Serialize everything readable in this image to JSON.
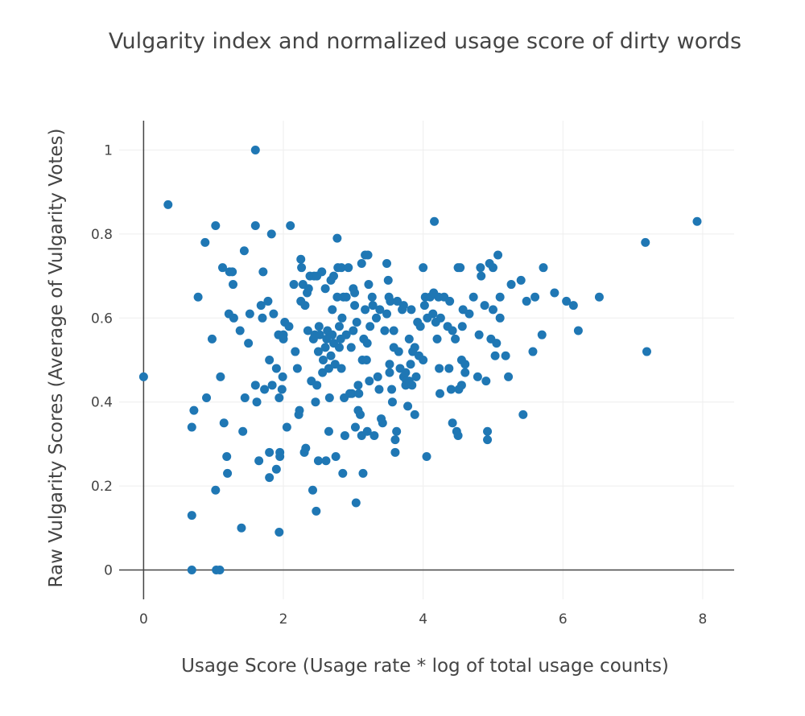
{
  "chart_data": {
    "type": "scatter",
    "title": "Vulgarity index and normalized usage score of dirty words",
    "xlabel": "Usage Score (Usage rate * log of total usage counts)",
    "ylabel": "Raw Vulgarity Scores (Average of Vulgarity Votes)",
    "xlim": [
      -0.35,
      8.45
    ],
    "ylim": [
      -0.07,
      1.07
    ],
    "xticks": [
      0,
      2,
      4,
      6,
      8
    ],
    "yticks": [
      0,
      0.2,
      0.4,
      0.6,
      0.8,
      1
    ],
    "x_tick_labels": [
      "0",
      "2",
      "4",
      "6",
      "8"
    ],
    "y_tick_labels": [
      "0",
      "0.2",
      "0.4",
      "0.6",
      "0.8",
      "1"
    ],
    "grid": true,
    "marker_color": "#1f77b4",
    "series": [
      {
        "points": [
          [
            0.0,
            0.46
          ],
          [
            0.35,
            0.87
          ],
          [
            0.69,
            0.0
          ],
          [
            0.69,
            0.13
          ],
          [
            0.69,
            0.34
          ],
          [
            0.72,
            0.38
          ],
          [
            0.78,
            0.65
          ],
          [
            0.88,
            0.78
          ],
          [
            0.9,
            0.41
          ],
          [
            0.98,
            0.55
          ],
          [
            1.03,
            0.82
          ],
          [
            1.03,
            0.19
          ],
          [
            1.04,
            0.0
          ],
          [
            1.09,
            0.0
          ],
          [
            1.1,
            0.46
          ],
          [
            1.13,
            0.72
          ],
          [
            1.15,
            0.35
          ],
          [
            1.19,
            0.27
          ],
          [
            1.2,
            0.23
          ],
          [
            1.22,
            0.61
          ],
          [
            1.23,
            0.71
          ],
          [
            1.27,
            0.71
          ],
          [
            1.28,
            0.68
          ],
          [
            1.29,
            0.6
          ],
          [
            1.38,
            0.57
          ],
          [
            1.4,
            0.1
          ],
          [
            1.42,
            0.33
          ],
          [
            1.44,
            0.76
          ],
          [
            1.45,
            0.41
          ],
          [
            1.5,
            0.54
          ],
          [
            1.52,
            0.61
          ],
          [
            1.6,
            1.0
          ],
          [
            1.6,
            0.82
          ],
          [
            1.6,
            0.44
          ],
          [
            1.62,
            0.4
          ],
          [
            1.65,
            0.26
          ],
          [
            1.68,
            0.63
          ],
          [
            1.7,
            0.6
          ],
          [
            1.71,
            0.71
          ],
          [
            1.73,
            0.43
          ],
          [
            1.78,
            0.64
          ],
          [
            1.8,
            0.28
          ],
          [
            1.8,
            0.22
          ],
          [
            1.8,
            0.5
          ],
          [
            1.83,
            0.8
          ],
          [
            1.84,
            0.44
          ],
          [
            1.86,
            0.61
          ],
          [
            1.9,
            0.24
          ],
          [
            1.9,
            0.48
          ],
          [
            1.93,
            0.56
          ],
          [
            1.94,
            0.41
          ],
          [
            1.94,
            0.09
          ],
          [
            1.95,
            0.28
          ],
          [
            1.95,
            0.27
          ],
          [
            1.98,
            0.43
          ],
          [
            1.99,
            0.46
          ],
          [
            2.0,
            0.55
          ],
          [
            2.0,
            0.56
          ],
          [
            2.02,
            0.59
          ],
          [
            2.05,
            0.34
          ],
          [
            2.08,
            0.58
          ],
          [
            2.1,
            0.82
          ],
          [
            2.15,
            0.68
          ],
          [
            2.17,
            0.52
          ],
          [
            2.2,
            0.48
          ],
          [
            2.22,
            0.37
          ],
          [
            2.23,
            0.38
          ],
          [
            2.25,
            0.64
          ],
          [
            2.25,
            0.74
          ],
          [
            2.26,
            0.72
          ],
          [
            2.28,
            0.68
          ],
          [
            2.3,
            0.28
          ],
          [
            2.31,
            0.63
          ],
          [
            2.32,
            0.29
          ],
          [
            2.34,
            0.66
          ],
          [
            2.35,
            0.57
          ],
          [
            2.36,
            0.67
          ],
          [
            2.38,
            0.7
          ],
          [
            2.4,
            0.45
          ],
          [
            2.42,
            0.19
          ],
          [
            2.43,
            0.55
          ],
          [
            2.44,
            0.7
          ],
          [
            2.45,
            0.56
          ],
          [
            2.46,
            0.4
          ],
          [
            2.47,
            0.14
          ],
          [
            2.48,
            0.7
          ],
          [
            2.48,
            0.44
          ],
          [
            2.5,
            0.26
          ],
          [
            2.5,
            0.52
          ],
          [
            2.51,
            0.58
          ],
          [
            2.52,
            0.56
          ],
          [
            2.55,
            0.71
          ],
          [
            2.56,
            0.47
          ],
          [
            2.57,
            0.5
          ],
          [
            2.6,
            0.53
          ],
          [
            2.6,
            0.67
          ],
          [
            2.61,
            0.26
          ],
          [
            2.62,
            0.55
          ],
          [
            2.63,
            0.57
          ],
          [
            2.65,
            0.48
          ],
          [
            2.65,
            0.33
          ],
          [
            2.66,
            0.41
          ],
          [
            2.68,
            0.69
          ],
          [
            2.68,
            0.51
          ],
          [
            2.7,
            0.56
          ],
          [
            2.7,
            0.62
          ],
          [
            2.72,
            0.7
          ],
          [
            2.72,
            0.54
          ],
          [
            2.74,
            0.49
          ],
          [
            2.75,
            0.27
          ],
          [
            2.77,
            0.79
          ],
          [
            2.77,
            0.65
          ],
          [
            2.78,
            0.72
          ],
          [
            2.8,
            0.58
          ],
          [
            2.8,
            0.53
          ],
          [
            2.82,
            0.55
          ],
          [
            2.83,
            0.72
          ],
          [
            2.83,
            0.48
          ],
          [
            2.84,
            0.6
          ],
          [
            2.85,
            0.23
          ],
          [
            2.86,
            0.65
          ],
          [
            2.87,
            0.41
          ],
          [
            2.88,
            0.32
          ],
          [
            2.9,
            0.65
          ],
          [
            2.9,
            0.56
          ],
          [
            2.93,
            0.72
          ],
          [
            2.95,
            0.42
          ],
          [
            2.97,
            0.53
          ],
          [
            2.98,
            0.42
          ],
          [
            3.0,
            0.57
          ],
          [
            3.0,
            0.67
          ],
          [
            3.02,
            0.66
          ],
          [
            3.02,
            0.63
          ],
          [
            3.03,
            0.34
          ],
          [
            3.04,
            0.16
          ],
          [
            3.05,
            0.59
          ],
          [
            3.07,
            0.38
          ],
          [
            3.07,
            0.44
          ],
          [
            3.08,
            0.42
          ],
          [
            3.1,
            0.37
          ],
          [
            3.12,
            0.73
          ],
          [
            3.12,
            0.32
          ],
          [
            3.13,
            0.5
          ],
          [
            3.14,
            0.23
          ],
          [
            3.15,
            0.55
          ],
          [
            3.17,
            0.62
          ],
          [
            3.17,
            0.75
          ],
          [
            3.19,
            0.5
          ],
          [
            3.2,
            0.33
          ],
          [
            3.2,
            0.54
          ],
          [
            3.21,
            0.75
          ],
          [
            3.22,
            0.68
          ],
          [
            3.23,
            0.45
          ],
          [
            3.24,
            0.58
          ],
          [
            3.27,
            0.65
          ],
          [
            3.28,
            0.63
          ],
          [
            3.3,
            0.32
          ],
          [
            3.33,
            0.6
          ],
          [
            3.35,
            0.46
          ],
          [
            3.37,
            0.43
          ],
          [
            3.38,
            0.62
          ],
          [
            3.4,
            0.36
          ],
          [
            3.42,
            0.35
          ],
          [
            3.45,
            0.57
          ],
          [
            3.48,
            0.73
          ],
          [
            3.48,
            0.61
          ],
          [
            3.5,
            0.69
          ],
          [
            3.51,
            0.65
          ],
          [
            3.52,
            0.47
          ],
          [
            3.52,
            0.49
          ],
          [
            3.53,
            0.64
          ],
          [
            3.55,
            0.43
          ],
          [
            3.56,
            0.4
          ],
          [
            3.58,
            0.53
          ],
          [
            3.58,
            0.57
          ],
          [
            3.6,
            0.31
          ],
          [
            3.6,
            0.28
          ],
          [
            3.62,
            0.33
          ],
          [
            3.63,
            0.64
          ],
          [
            3.65,
            0.52
          ],
          [
            3.67,
            0.48
          ],
          [
            3.7,
            0.62
          ],
          [
            3.72,
            0.46
          ],
          [
            3.72,
            0.63
          ],
          [
            3.75,
            0.44
          ],
          [
            3.75,
            0.47
          ],
          [
            3.76,
            0.45
          ],
          [
            3.78,
            0.39
          ],
          [
            3.8,
            0.55
          ],
          [
            3.8,
            0.45
          ],
          [
            3.82,
            0.49
          ],
          [
            3.83,
            0.62
          ],
          [
            3.84,
            0.44
          ],
          [
            3.85,
            0.52
          ],
          [
            3.88,
            0.37
          ],
          [
            3.88,
            0.53
          ],
          [
            3.9,
            0.46
          ],
          [
            3.92,
            0.59
          ],
          [
            3.94,
            0.51
          ],
          [
            3.96,
            0.58
          ],
          [
            4.0,
            0.72
          ],
          [
            4.0,
            0.5
          ],
          [
            4.02,
            0.63
          ],
          [
            4.03,
            0.65
          ],
          [
            4.05,
            0.27
          ],
          [
            4.06,
            0.6
          ],
          [
            4.1,
            0.65
          ],
          [
            4.14,
            0.61
          ],
          [
            4.15,
            0.66
          ],
          [
            4.16,
            0.83
          ],
          [
            4.18,
            0.59
          ],
          [
            4.2,
            0.55
          ],
          [
            4.22,
            0.65
          ],
          [
            4.23,
            0.48
          ],
          [
            4.24,
            0.42
          ],
          [
            4.25,
            0.6
          ],
          [
            4.3,
            0.65
          ],
          [
            4.35,
            0.58
          ],
          [
            4.37,
            0.48
          ],
          [
            4.38,
            0.64
          ],
          [
            4.4,
            0.43
          ],
          [
            4.42,
            0.57
          ],
          [
            4.42,
            0.35
          ],
          [
            4.46,
            0.55
          ],
          [
            4.48,
            0.33
          ],
          [
            4.5,
            0.32
          ],
          [
            4.5,
            0.72
          ],
          [
            4.51,
            0.43
          ],
          [
            4.53,
            0.72
          ],
          [
            4.55,
            0.5
          ],
          [
            4.55,
            0.44
          ],
          [
            4.56,
            0.58
          ],
          [
            4.57,
            0.62
          ],
          [
            4.6,
            0.49
          ],
          [
            4.6,
            0.47
          ],
          [
            4.66,
            0.61
          ],
          [
            4.72,
            0.65
          ],
          [
            4.78,
            0.46
          ],
          [
            4.8,
            0.56
          ],
          [
            4.82,
            0.72
          ],
          [
            4.83,
            0.7
          ],
          [
            4.88,
            0.63
          ],
          [
            4.9,
            0.45
          ],
          [
            4.92,
            0.33
          ],
          [
            4.92,
            0.31
          ],
          [
            4.95,
            0.73
          ],
          [
            4.97,
            0.55
          ],
          [
            5.0,
            0.72
          ],
          [
            5.0,
            0.62
          ],
          [
            5.03,
            0.51
          ],
          [
            5.05,
            0.54
          ],
          [
            5.07,
            0.75
          ],
          [
            5.1,
            0.65
          ],
          [
            5.1,
            0.6
          ],
          [
            5.18,
            0.51
          ],
          [
            5.22,
            0.46
          ],
          [
            5.26,
            0.68
          ],
          [
            5.4,
            0.69
          ],
          [
            5.43,
            0.37
          ],
          [
            5.48,
            0.64
          ],
          [
            5.57,
            0.52
          ],
          [
            5.6,
            0.65
          ],
          [
            5.7,
            0.56
          ],
          [
            5.72,
            0.72
          ],
          [
            5.88,
            0.66
          ],
          [
            6.05,
            0.64
          ],
          [
            6.15,
            0.63
          ],
          [
            6.22,
            0.57
          ],
          [
            6.52,
            0.65
          ],
          [
            7.18,
            0.78
          ],
          [
            7.2,
            0.52
          ],
          [
            7.92,
            0.83
          ]
        ]
      }
    ]
  }
}
